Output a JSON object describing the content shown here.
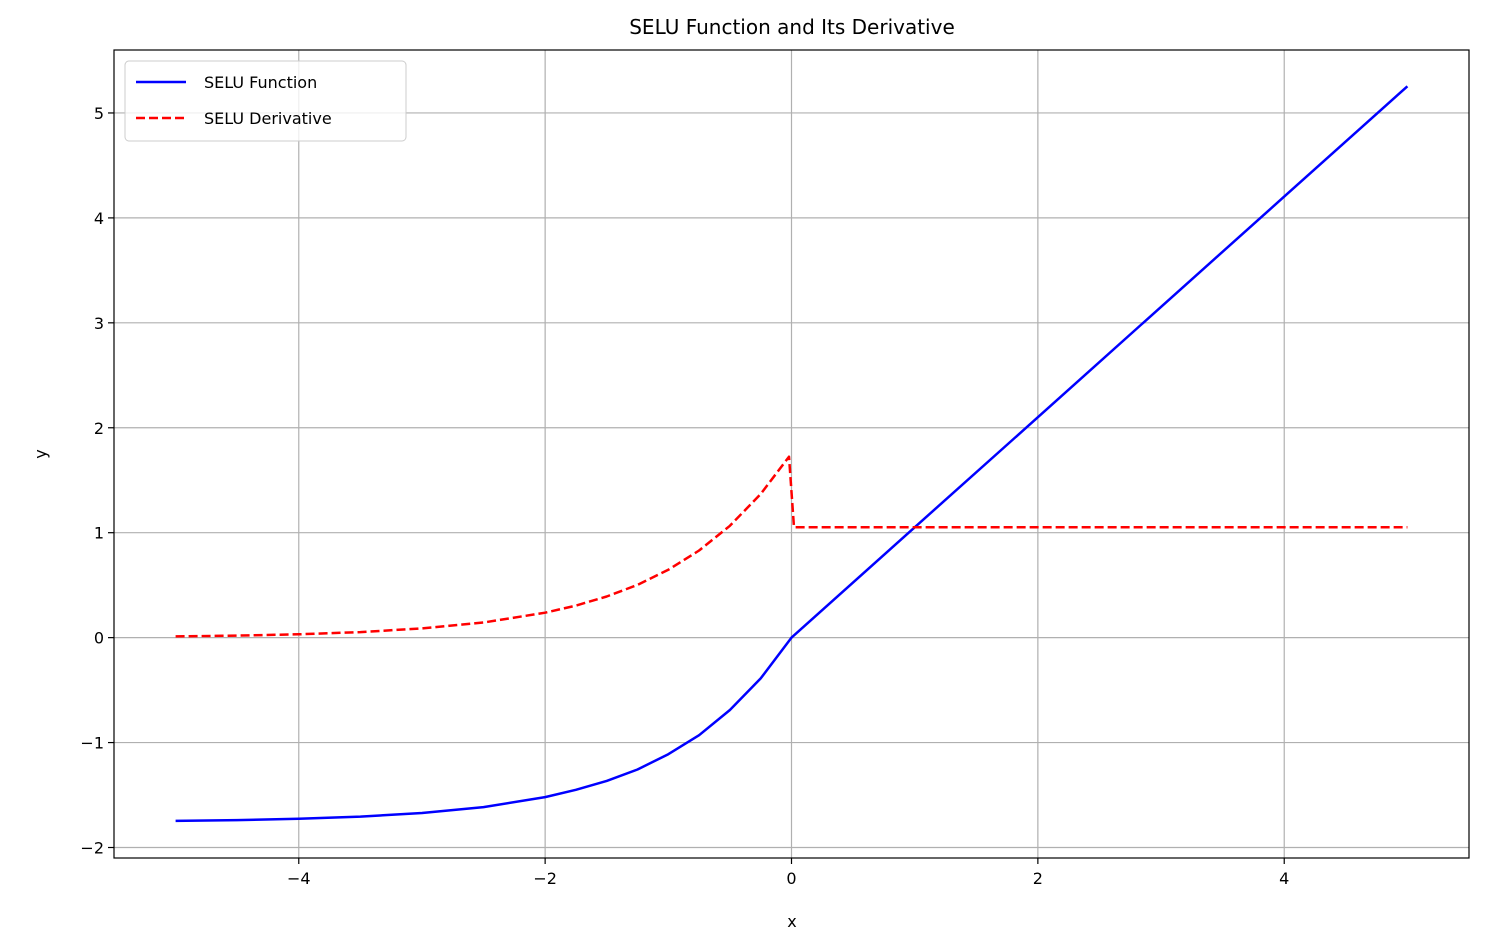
{
  "chart_data": {
    "type": "line",
    "title": "SELU Function and Its Derivative",
    "xlabel": "x",
    "ylabel": "y",
    "xlim": [
      -5.5,
      5.5
    ],
    "ylim": [
      -2.1,
      5.6
    ],
    "grid": true,
    "legend_position": "top-left",
    "x_ticks": [
      -4,
      -2,
      0,
      2,
      4
    ],
    "x_tick_labels": [
      "−4",
      "−2",
      "0",
      "2",
      "4"
    ],
    "y_ticks": [
      -2,
      -1,
      0,
      1,
      2,
      3,
      4,
      5
    ],
    "y_tick_labels": [
      "−2",
      "−1",
      "0",
      "1",
      "2",
      "3",
      "4",
      "5"
    ],
    "series": [
      {
        "name": "SELU Function",
        "color": "#0000ff",
        "style": "solid",
        "x": [
          -5,
          -4.5,
          -4,
          -3.5,
          -3,
          -2.5,
          -2,
          -1.75,
          -1.5,
          -1.25,
          -1,
          -0.75,
          -0.5,
          -0.25,
          0,
          1,
          2,
          3,
          4,
          5
        ],
        "y": [
          -1.746,
          -1.739,
          -1.726,
          -1.705,
          -1.671,
          -1.615,
          -1.52,
          -1.45,
          -1.365,
          -1.257,
          -1.111,
          -0.93,
          -0.69,
          -0.388,
          0,
          1.051,
          2.101,
          3.152,
          4.203,
          5.254
        ]
      },
      {
        "name": "SELU Derivative",
        "color": "#ff0000",
        "style": "dashed",
        "x": [
          -5,
          -4.5,
          -4,
          -3.5,
          -3,
          -2.5,
          -2,
          -1.75,
          -1.5,
          -1.25,
          -1,
          -0.75,
          -0.5,
          -0.25,
          -0.02,
          0.02,
          1,
          2,
          3,
          4,
          5
        ],
        "y": [
          0.012,
          0.019,
          0.032,
          0.053,
          0.088,
          0.144,
          0.238,
          0.305,
          0.392,
          0.503,
          0.646,
          0.83,
          1.066,
          1.369,
          1.724,
          1.051,
          1.051,
          1.051,
          1.051,
          1.051,
          1.051
        ]
      }
    ]
  }
}
